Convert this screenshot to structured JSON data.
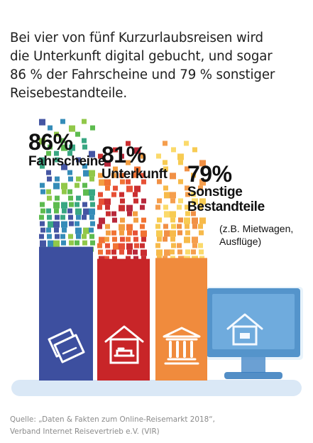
{
  "headline": {
    "lines": [
      "Bei vier von fünf Kurzurlaubsreisen wird",
      "die Unterkunft digital gebucht, und sogar",
      "86 % der Fahrscheine und 79 % sonstiger",
      "Reisebestandteile."
    ]
  },
  "chart_data": {
    "type": "bar",
    "categories": [
      "Fahrscheine",
      "Unterkunft",
      "Sonstige Bestandteile"
    ],
    "values": [
      86,
      81,
      79
    ],
    "value_labels": [
      "86%",
      "81%",
      "79%"
    ],
    "category_labels": [
      [
        "Fahrscheine"
      ],
      [
        "Unterkunft"
      ],
      [
        "Sonstige",
        "Bestandteile"
      ]
    ],
    "notes": [
      "(z.B. Mietwagen,",
      "Ausflüge)"
    ],
    "icons": [
      "ticket-icon",
      "bed-icon",
      "museum-icon"
    ],
    "colors": {
      "fahrscheine_bar": "#3d4f9f",
      "fahrscheine_pixels": [
        "#3d4f9f",
        "#31a37e",
        "#56b848",
        "#8dc642",
        "#2d87b5"
      ],
      "unterkunft_bar": "#c82528",
      "unterkunft_pixels": [
        "#c82528",
        "#e64a2e",
        "#f06d2c",
        "#f39a3a",
        "#b51f33"
      ],
      "sonstige_bar": "#f08b3d",
      "sonstige_pixels": [
        "#f08b3d",
        "#f7c94c",
        "#fbd965",
        "#f59a46",
        "#f7b743"
      ],
      "monitor": "#3f86c4",
      "shadow": "#d8e7f5"
    },
    "ylim": [
      0,
      100
    ],
    "grid": false,
    "legend": "none"
  },
  "source": {
    "lines": [
      "Quelle: „Daten & Fakten zum Online-Reisemarkt 2018“,",
      "Verband Internet Reisevertrieb e.V. (VIR)"
    ]
  }
}
